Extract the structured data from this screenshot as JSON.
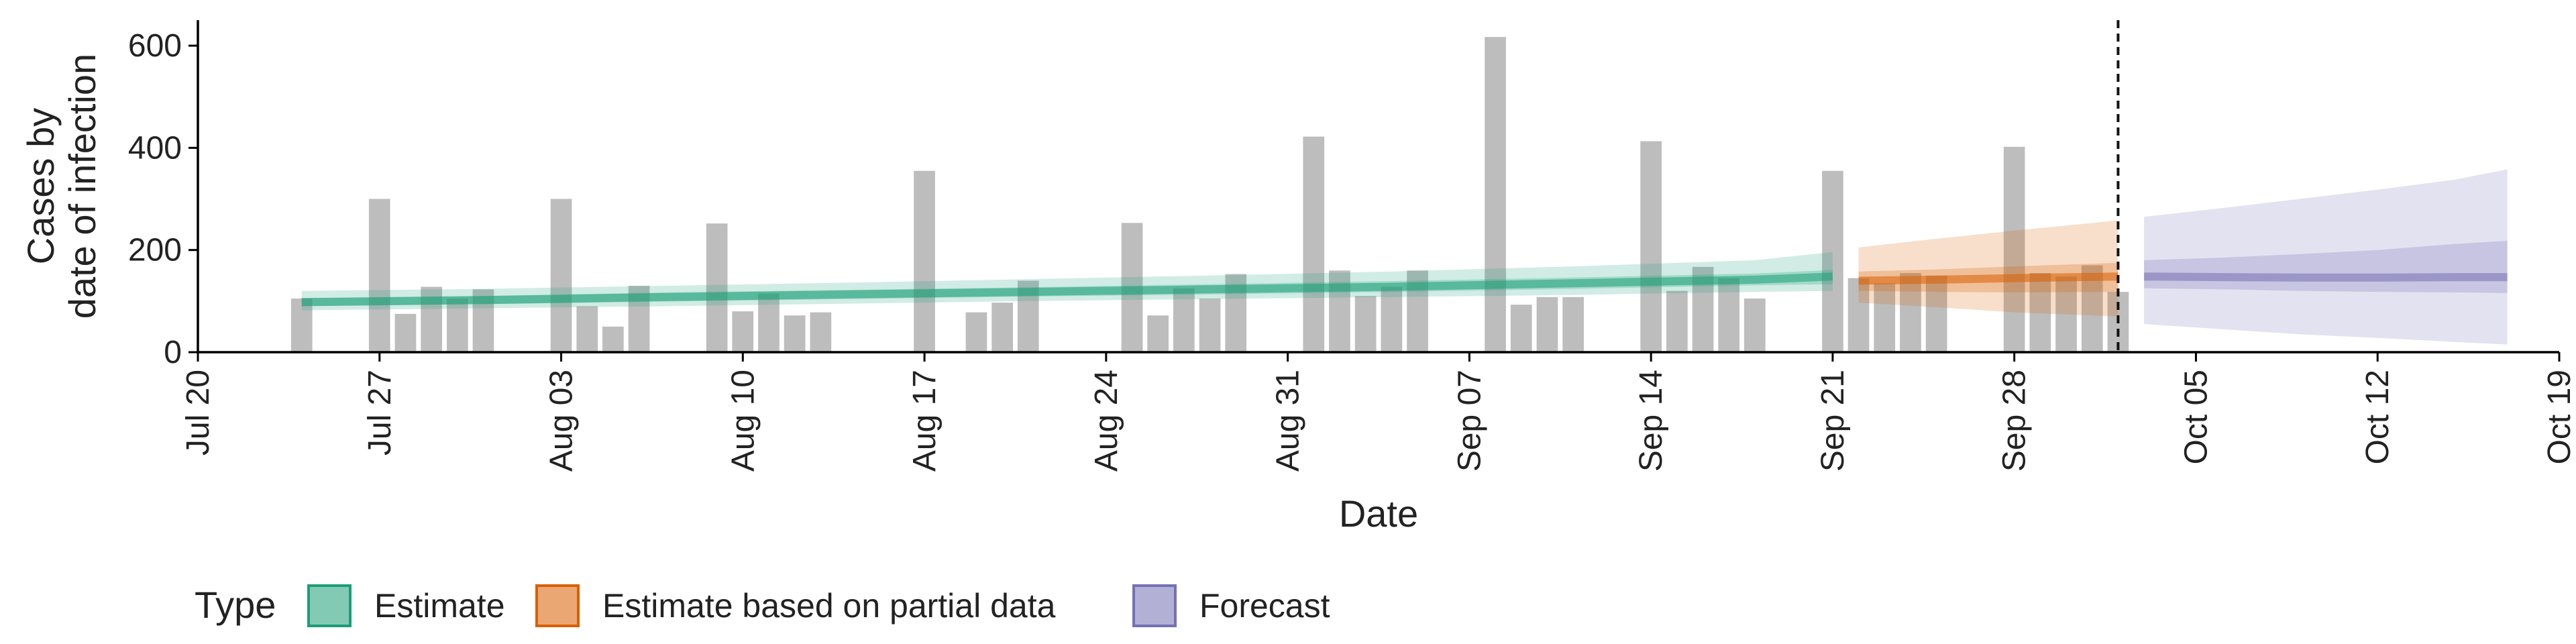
{
  "chart_data": {
    "type": "bar",
    "title": "",
    "xlabel": "Date",
    "ylabel_lines": [
      "Cases by",
      "date of infection"
    ],
    "ylim": [
      0,
      650
    ],
    "yticks": [
      0,
      200,
      400,
      600
    ],
    "xlim": [
      "2020-07-20",
      "2020-10-19"
    ],
    "xticks": [
      {
        "date": "2020-07-20",
        "label": "Jul 20"
      },
      {
        "date": "2020-07-27",
        "label": "Jul 27"
      },
      {
        "date": "2020-08-03",
        "label": "Aug 03"
      },
      {
        "date": "2020-08-10",
        "label": "Aug 10"
      },
      {
        "date": "2020-08-17",
        "label": "Aug 17"
      },
      {
        "date": "2020-08-24",
        "label": "Aug 24"
      },
      {
        "date": "2020-08-31",
        "label": "Aug 31"
      },
      {
        "date": "2020-09-07",
        "label": "Sep 07"
      },
      {
        "date": "2020-09-14",
        "label": "Sep 14"
      },
      {
        "date": "2020-09-21",
        "label": "Sep 21"
      },
      {
        "date": "2020-09-28",
        "label": "Sep 28"
      },
      {
        "date": "2020-10-05",
        "label": "Oct 05"
      },
      {
        "date": "2020-10-12",
        "label": "Oct 12"
      },
      {
        "date": "2020-10-19",
        "label": "Oct 19"
      }
    ],
    "reported_cases": {
      "dates": [
        "2020-07-24",
        "2020-07-25",
        "2020-07-26",
        "2020-07-27",
        "2020-07-28",
        "2020-07-29",
        "2020-07-30",
        "2020-07-31",
        "2020-08-01",
        "2020-08-02",
        "2020-08-03",
        "2020-08-04",
        "2020-08-05",
        "2020-08-06",
        "2020-08-07",
        "2020-08-08",
        "2020-08-09",
        "2020-08-10",
        "2020-08-11",
        "2020-08-12",
        "2020-08-13",
        "2020-08-14",
        "2020-08-15",
        "2020-08-16",
        "2020-08-17",
        "2020-08-18",
        "2020-08-19",
        "2020-08-20",
        "2020-08-21",
        "2020-08-22",
        "2020-08-23",
        "2020-08-24",
        "2020-08-25",
        "2020-08-26",
        "2020-08-27",
        "2020-08-28",
        "2020-08-29",
        "2020-08-30",
        "2020-08-31",
        "2020-09-01",
        "2020-09-02",
        "2020-09-03",
        "2020-09-04",
        "2020-09-05",
        "2020-09-06",
        "2020-09-07",
        "2020-09-08",
        "2020-09-09",
        "2020-09-10",
        "2020-09-11",
        "2020-09-12",
        "2020-09-13",
        "2020-09-14",
        "2020-09-15",
        "2020-09-16",
        "2020-09-17",
        "2020-09-18",
        "2020-09-19",
        "2020-09-20",
        "2020-09-21",
        "2020-09-22",
        "2020-09-23",
        "2020-09-24",
        "2020-09-25",
        "2020-09-26",
        "2020-09-27",
        "2020-09-28",
        "2020-09-29",
        "2020-09-30",
        "2020-10-01",
        "2020-10-02"
      ],
      "values": [
        105,
        0,
        0,
        300,
        75,
        128,
        105,
        123,
        0,
        0,
        300,
        90,
        50,
        130,
        0,
        0,
        252,
        80,
        115,
        72,
        78,
        0,
        0,
        0,
        355,
        0,
        78,
        97,
        140,
        0,
        0,
        0,
        253,
        72,
        125,
        105,
        153,
        0,
        0,
        422,
        160,
        110,
        128,
        160,
        0,
        0,
        617,
        93,
        108,
        108,
        0,
        0,
        413,
        120,
        167,
        145,
        105,
        0,
        0,
        355,
        145,
        135,
        155,
        150,
        0,
        0,
        402,
        155,
        148,
        170,
        118
      ]
    },
    "series": [
      {
        "name": "Estimate",
        "color": "#1b9e77",
        "dates": [
          "2020-07-24",
          "2020-07-31",
          "2020-08-07",
          "2020-08-14",
          "2020-08-21",
          "2020-08-28",
          "2020-09-04",
          "2020-09-11",
          "2020-09-18",
          "2020-09-21"
        ],
        "median": [
          98,
          102,
          108,
          113,
          118,
          123,
          128,
          135,
          142,
          148
        ],
        "lower_50": [
          90,
          94,
          99,
          104,
          109,
          113,
          118,
          124,
          131,
          133
        ],
        "upper_50": [
          106,
          110,
          117,
          122,
          127,
          133,
          139,
          146,
          154,
          161
        ],
        "lower_90": [
          82,
          86,
          90,
          95,
          100,
          104,
          108,
          112,
          118,
          120
        ],
        "upper_90": [
          120,
          124,
          130,
          136,
          143,
          150,
          158,
          168,
          180,
          196
        ]
      },
      {
        "name": "Estimate based on partial data",
        "color": "#d95f02",
        "dates": [
          "2020-09-22",
          "2020-09-25",
          "2020-09-28",
          "2020-10-02"
        ],
        "median": [
          140,
          142,
          145,
          148
        ],
        "lower_50": [
          120,
          118,
          117,
          118
        ],
        "upper_50": [
          158,
          162,
          168,
          175
        ],
        "lower_90": [
          97,
          88,
          78,
          70
        ],
        "upper_90": [
          205,
          222,
          238,
          258
        ]
      },
      {
        "name": "Forecast",
        "color": "#7570b3",
        "dates": [
          "2020-10-03",
          "2020-10-06",
          "2020-10-09",
          "2020-10-12",
          "2020-10-15",
          "2020-10-17"
        ],
        "median": [
          148,
          147,
          146,
          146,
          147,
          147
        ],
        "lower_50": [
          125,
          123,
          120,
          118,
          117,
          116
        ],
        "upper_50": [
          180,
          185,
          192,
          200,
          212,
          218
        ],
        "lower_90": [
          55,
          45,
          35,
          28,
          20,
          15
        ],
        "upper_90": [
          265,
          282,
          300,
          318,
          338,
          358
        ]
      }
    ],
    "vline_date": "2020-10-02",
    "legend": {
      "placement": "bottom",
      "title": "Type",
      "items": [
        {
          "label": "Estimate",
          "color": "#1b9e77"
        },
        {
          "label": "Estimate based on partial data",
          "color": "#d95f02"
        },
        {
          "label": "Forecast",
          "color": "#7570b3"
        }
      ]
    }
  }
}
